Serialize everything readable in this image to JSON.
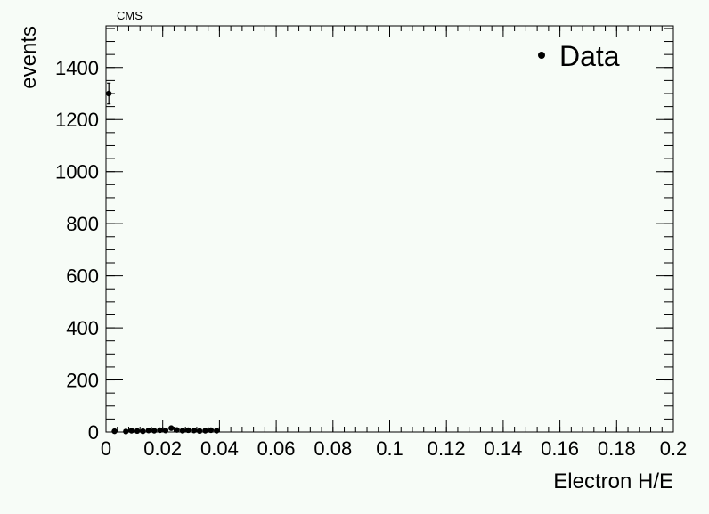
{
  "chart_data": {
    "type": "scatter",
    "title": "CMS",
    "xlabel": "Electron H/E",
    "ylabel": "events",
    "xlim": [
      0,
      0.2
    ],
    "ylim": [
      0,
      1560
    ],
    "x_ticks": [
      0,
      0.02,
      0.04,
      0.06,
      0.08,
      0.1,
      0.12,
      0.14,
      0.16,
      0.18,
      0.2
    ],
    "x_tick_labels": [
      "0",
      "0.02",
      "0.04",
      "0.06",
      "0.08",
      "0.1",
      "0.12",
      "0.14",
      "0.16",
      "0.18",
      "0.2"
    ],
    "y_ticks": [
      0,
      200,
      400,
      600,
      800,
      1000,
      1200,
      1400
    ],
    "y_tick_labels": [
      "0",
      "200",
      "400",
      "600",
      "800",
      "1000",
      "1200",
      "1400"
    ],
    "grid": false,
    "legend": {
      "placement": "top-right",
      "entries": [
        "Data"
      ]
    },
    "series": [
      {
        "name": "Data",
        "color": "#000000",
        "points": [
          {
            "x": 0.001,
            "y": 1300,
            "err": 40
          },
          {
            "x": 0.003,
            "y": 3,
            "err": 2
          },
          {
            "x": 0.007,
            "y": 2,
            "err": 1.5
          },
          {
            "x": 0.009,
            "y": 5,
            "err": 2.2
          },
          {
            "x": 0.011,
            "y": 4,
            "err": 2
          },
          {
            "x": 0.013,
            "y": 3,
            "err": 1.7
          },
          {
            "x": 0.015,
            "y": 6,
            "err": 2.4
          },
          {
            "x": 0.017,
            "y": 5,
            "err": 2.2
          },
          {
            "x": 0.019,
            "y": 7,
            "err": 2.6
          },
          {
            "x": 0.021,
            "y": 6,
            "err": 2.4
          },
          {
            "x": 0.023,
            "y": 15,
            "err": 3.9
          },
          {
            "x": 0.025,
            "y": 8,
            "err": 2.8
          },
          {
            "x": 0.027,
            "y": 5,
            "err": 2.2
          },
          {
            "x": 0.029,
            "y": 7,
            "err": 2.6
          },
          {
            "x": 0.031,
            "y": 6,
            "err": 2.4
          },
          {
            "x": 0.033,
            "y": 4,
            "err": 2
          },
          {
            "x": 0.035,
            "y": 5,
            "err": 2.2
          },
          {
            "x": 0.037,
            "y": 7,
            "err": 2.6
          },
          {
            "x": 0.039,
            "y": 5,
            "err": 2.2
          }
        ]
      }
    ]
  }
}
